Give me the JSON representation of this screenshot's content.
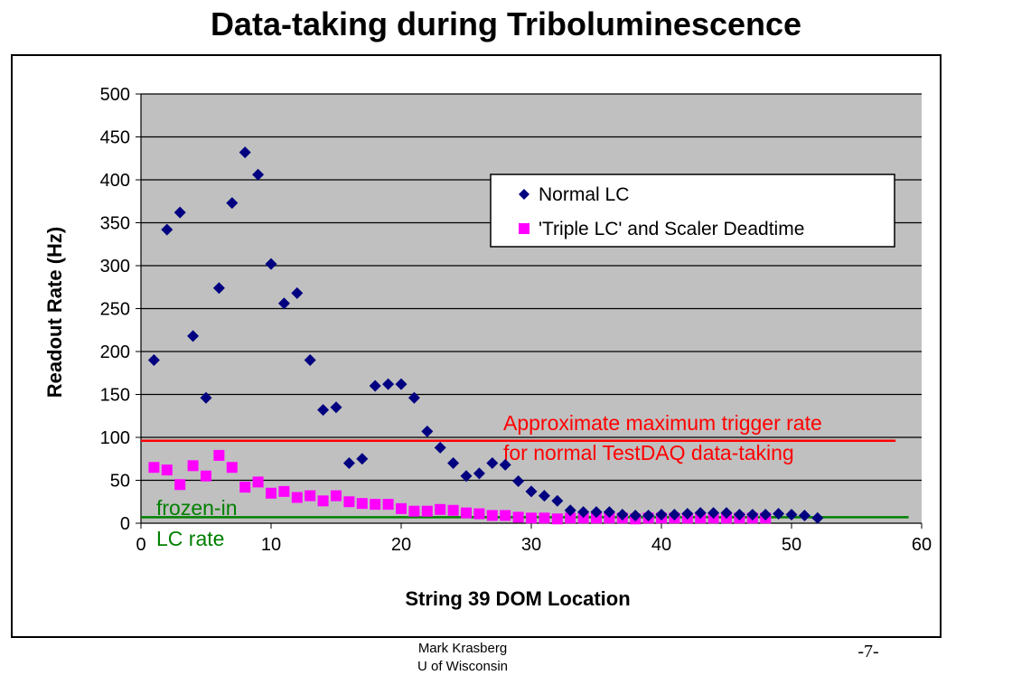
{
  "slide": {
    "title": "Data-taking during Triboluminescence",
    "footer_line1": "Mark Krasberg",
    "footer_line2": "U of Wisconsin",
    "page_number": "-7-"
  },
  "chart_data": {
    "type": "scatter",
    "title": "",
    "xlabel": "String 39 DOM Location",
    "ylabel": "Readout Rate (Hz)",
    "xlim": [
      0,
      60
    ],
    "ylim": [
      0,
      500
    ],
    "x_ticks": [
      0,
      10,
      20,
      30,
      40,
      50,
      60
    ],
    "y_ticks": [
      0,
      50,
      100,
      150,
      200,
      250,
      300,
      350,
      400,
      450,
      500
    ],
    "grid": "horizontal",
    "background": "#C0C0C0",
    "legend_position": "top-right",
    "series": [
      {
        "name": "Normal LC",
        "marker": "diamond",
        "color": "#000080",
        "x": [
          1,
          2,
          3,
          4,
          5,
          6,
          7,
          8,
          9,
          10,
          11,
          12,
          13,
          14,
          15,
          16,
          17,
          18,
          19,
          20,
          21,
          22,
          23,
          24,
          25,
          26,
          27,
          28,
          29,
          30,
          31,
          32,
          33,
          34,
          35,
          36,
          37,
          38,
          39,
          40,
          41,
          42,
          43,
          44,
          45,
          46,
          47,
          48,
          49,
          50,
          51,
          52
        ],
        "y": [
          190,
          342,
          362,
          218,
          146,
          274,
          373,
          432,
          406,
          302,
          256,
          268,
          190,
          132,
          135,
          70,
          75,
          160,
          162,
          162,
          146,
          107,
          88,
          70,
          55,
          58,
          70,
          68,
          49,
          37,
          32,
          26,
          15,
          13,
          13,
          13,
          10,
          9,
          9,
          10,
          10,
          11,
          12,
          12,
          12,
          10,
          10,
          10,
          11,
          10,
          9,
          6
        ]
      },
      {
        "name": "'Triple LC' and Scaler Deadtime",
        "marker": "square",
        "color": "#FF00FF",
        "x": [
          1,
          2,
          3,
          4,
          5,
          6,
          7,
          8,
          9,
          10,
          11,
          12,
          13,
          14,
          15,
          16,
          17,
          18,
          19,
          20,
          21,
          22,
          23,
          24,
          25,
          26,
          27,
          28,
          29,
          30,
          31,
          32,
          33,
          34,
          35,
          36,
          37,
          38,
          39,
          40,
          41,
          42,
          43,
          44,
          45,
          46,
          47,
          48
        ],
        "y": [
          65,
          62,
          45,
          67,
          55,
          79,
          65,
          42,
          48,
          35,
          37,
          30,
          32,
          26,
          32,
          25,
          23,
          22,
          22,
          17,
          14,
          14,
          16,
          15,
          12,
          11,
          9,
          9,
          7,
          6,
          6,
          5,
          6,
          6,
          6,
          6,
          6,
          5,
          6,
          6,
          6,
          6,
          6,
          6,
          6,
          6,
          6,
          6
        ]
      }
    ],
    "reference_lines": [
      {
        "name": "max-trigger-rate-line",
        "y": 96,
        "x_start": 0,
        "x_end": 58,
        "color": "#FF0000",
        "label_line1": "Approximate maximum trigger rate",
        "label_line2": "for normal TestDAQ data-taking"
      },
      {
        "name": "frozen-in-lc-rate-line",
        "y": 7,
        "x_start": 0,
        "x_end": 59,
        "color": "#008000",
        "label_line1": "frozen-in",
        "label_line2": "LC rate"
      }
    ]
  }
}
